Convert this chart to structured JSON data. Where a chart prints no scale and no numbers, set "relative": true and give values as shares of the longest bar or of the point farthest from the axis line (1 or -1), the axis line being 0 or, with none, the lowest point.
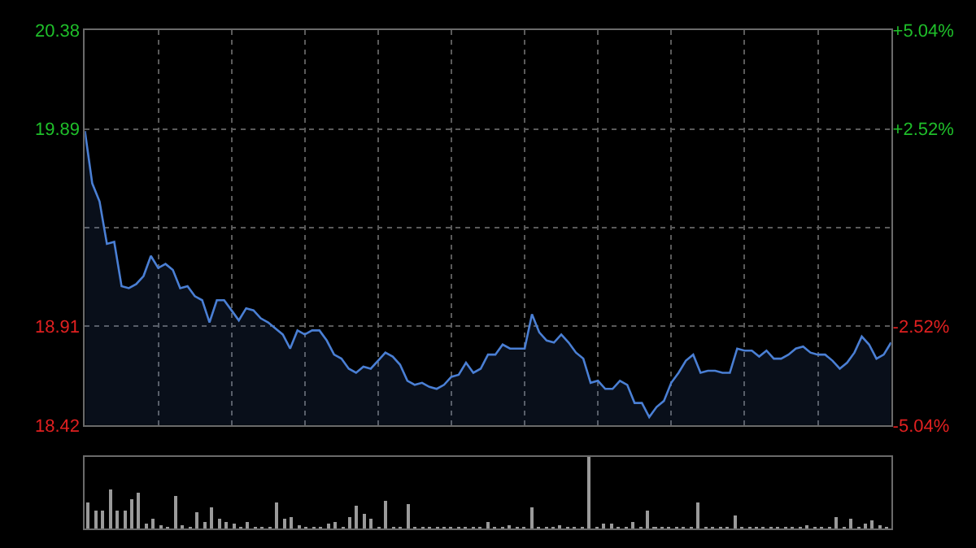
{
  "chart_data": [
    {
      "type": "area",
      "color": "#4a7fd4",
      "grid": true,
      "categories": [
        null,
        null,
        null,
        null,
        null,
        null,
        null,
        null,
        null,
        null,
        null,
        null,
        null,
        null,
        null,
        null,
        null,
        null,
        null,
        null,
        null,
        null,
        null,
        null,
        null,
        null,
        null,
        null,
        null,
        null,
        null,
        null,
        null,
        null,
        null,
        null,
        null,
        null,
        null,
        null,
        null,
        null,
        null,
        null,
        null,
        null,
        null,
        null,
        null,
        null,
        null,
        null,
        null,
        null,
        null,
        null,
        null,
        null,
        null,
        null,
        null,
        null,
        null,
        null,
        null,
        null,
        null,
        null,
        null,
        null,
        null,
        null,
        null,
        null,
        null,
        null,
        null,
        null,
        null,
        null,
        null,
        null,
        null,
        null,
        null,
        null,
        null,
        null,
        null,
        null,
        null,
        null,
        null,
        null,
        null,
        null,
        null,
        null,
        null,
        null,
        null,
        null,
        null,
        null,
        null,
        null,
        null,
        null,
        null,
        null,
        null
      ],
      "values": [
        19.88,
        19.62,
        19.53,
        19.32,
        19.33,
        19.11,
        19.1,
        19.12,
        19.16,
        19.26,
        19.2,
        19.22,
        19.19,
        19.1,
        19.11,
        19.06,
        19.04,
        18.93,
        19.04,
        19.04,
        18.99,
        18.94,
        19.0,
        18.99,
        18.95,
        18.93,
        18.9,
        18.87,
        18.8,
        18.89,
        18.87,
        18.89,
        18.89,
        18.84,
        18.77,
        18.75,
        18.7,
        18.68,
        18.71,
        18.7,
        18.74,
        18.78,
        18.76,
        18.72,
        18.64,
        18.62,
        18.63,
        18.61,
        18.6,
        18.62,
        18.66,
        18.67,
        18.73,
        18.68,
        18.7,
        18.77,
        18.77,
        18.82,
        18.8,
        18.8,
        18.8,
        18.97,
        18.88,
        18.84,
        18.83,
        18.87,
        18.83,
        18.78,
        18.75,
        18.63,
        18.64,
        18.6,
        18.6,
        18.64,
        18.62,
        18.53,
        18.53,
        18.46,
        18.51,
        18.54,
        18.63,
        18.68,
        18.74,
        18.77,
        18.68,
        18.69,
        18.69,
        18.68,
        18.68,
        18.8,
        18.79,
        18.79,
        18.76,
        18.79,
        18.75,
        18.75,
        18.77,
        18.8,
        18.81,
        18.78,
        18.77,
        18.77,
        18.74,
        18.7,
        18.73,
        18.78,
        18.86,
        18.82,
        18.75,
        18.77,
        18.83
      ],
      "ylim": [
        18.42,
        20.38
      ],
      "yticks": [
        18.42,
        18.91,
        {
          "value": 19.4,
          "label": null
        },
        19.89,
        20.38
      ],
      "y2lim": [
        -5.04,
        5.04
      ],
      "y2ticks": [
        {
          "value": -5.04,
          "label": "-5.04%"
        },
        {
          "value": -2.52,
          "label": "-2.52%"
        },
        {
          "value": 0,
          "label": null
        },
        {
          "value": 2.52,
          "label": "+2.52%"
        },
        {
          "value": 5.04,
          "label": "+5.04%"
        }
      ]
    },
    {
      "type": "bar",
      "relative": true,
      "color": "#9a9a9a",
      "categories": [
        null,
        null,
        null,
        null,
        null,
        null,
        null,
        null,
        null,
        null,
        null,
        null,
        null,
        null,
        null,
        null,
        null,
        null,
        null,
        null,
        null,
        null,
        null,
        null,
        null,
        null,
        null,
        null,
        null,
        null,
        null,
        null,
        null,
        null,
        null,
        null,
        null,
        null,
        null,
        null,
        null,
        null,
        null,
        null,
        null,
        null,
        null,
        null,
        null,
        null,
        null,
        null,
        null,
        null,
        null,
        null,
        null,
        null,
        null,
        null,
        null,
        null,
        null,
        null,
        null,
        null,
        null,
        null,
        null,
        null,
        null,
        null,
        null,
        null,
        null,
        null,
        null,
        null,
        null,
        null,
        null,
        null,
        null,
        null,
        null,
        null,
        null,
        null,
        null,
        null,
        null,
        null,
        null,
        null,
        null,
        null,
        null,
        null,
        null,
        null,
        null,
        null,
        null,
        null,
        null,
        null,
        null,
        null,
        null,
        null,
        null
      ],
      "values": [
        0.36,
        0.26,
        0.26,
        0.55,
        0.25,
        0.26,
        0.41,
        0.5,
        0.07,
        0.14,
        0.06,
        0.02,
        0.45,
        0.06,
        0.01,
        0.23,
        0.1,
        0.31,
        0.14,
        0.09,
        0.07,
        0.01,
        0.1,
        0.03,
        0.03,
        0.01,
        0.37,
        0.14,
        0.16,
        0.06,
        0.02,
        0.01,
        0.01,
        0.07,
        0.1,
        0.01,
        0.16,
        0.32,
        0.2,
        0.14,
        0.01,
        0.38,
        0.01,
        0.02,
        0.34,
        0.01,
        0.02,
        0.01,
        0.03,
        0.01,
        0.01,
        0.03,
        0.01,
        0.02,
        0.01,
        0.09,
        0.01,
        0.01,
        0.06,
        0.01,
        0.03,
        0.29,
        0.01,
        0.01,
        0.02,
        0.06,
        0.01,
        0.02,
        0.01,
        1,
        0.01,
        0.07,
        0.07,
        0.02,
        0.01,
        0.09,
        0.01,
        0.25,
        0.01,
        0.03,
        0.01,
        0.02,
        0.01,
        0.01,
        0.37,
        0.01,
        0.02,
        0.01,
        0.01,
        0.18,
        0.01,
        0.03,
        0.01,
        0.01,
        0.03,
        0.01,
        0.01,
        0.02,
        0.01,
        0.06,
        0.01,
        0.03,
        0.01,
        0.16,
        0.01,
        0.13,
        0.01,
        0.07,
        0.12,
        0.06,
        0.01
      ]
    }
  ]
}
